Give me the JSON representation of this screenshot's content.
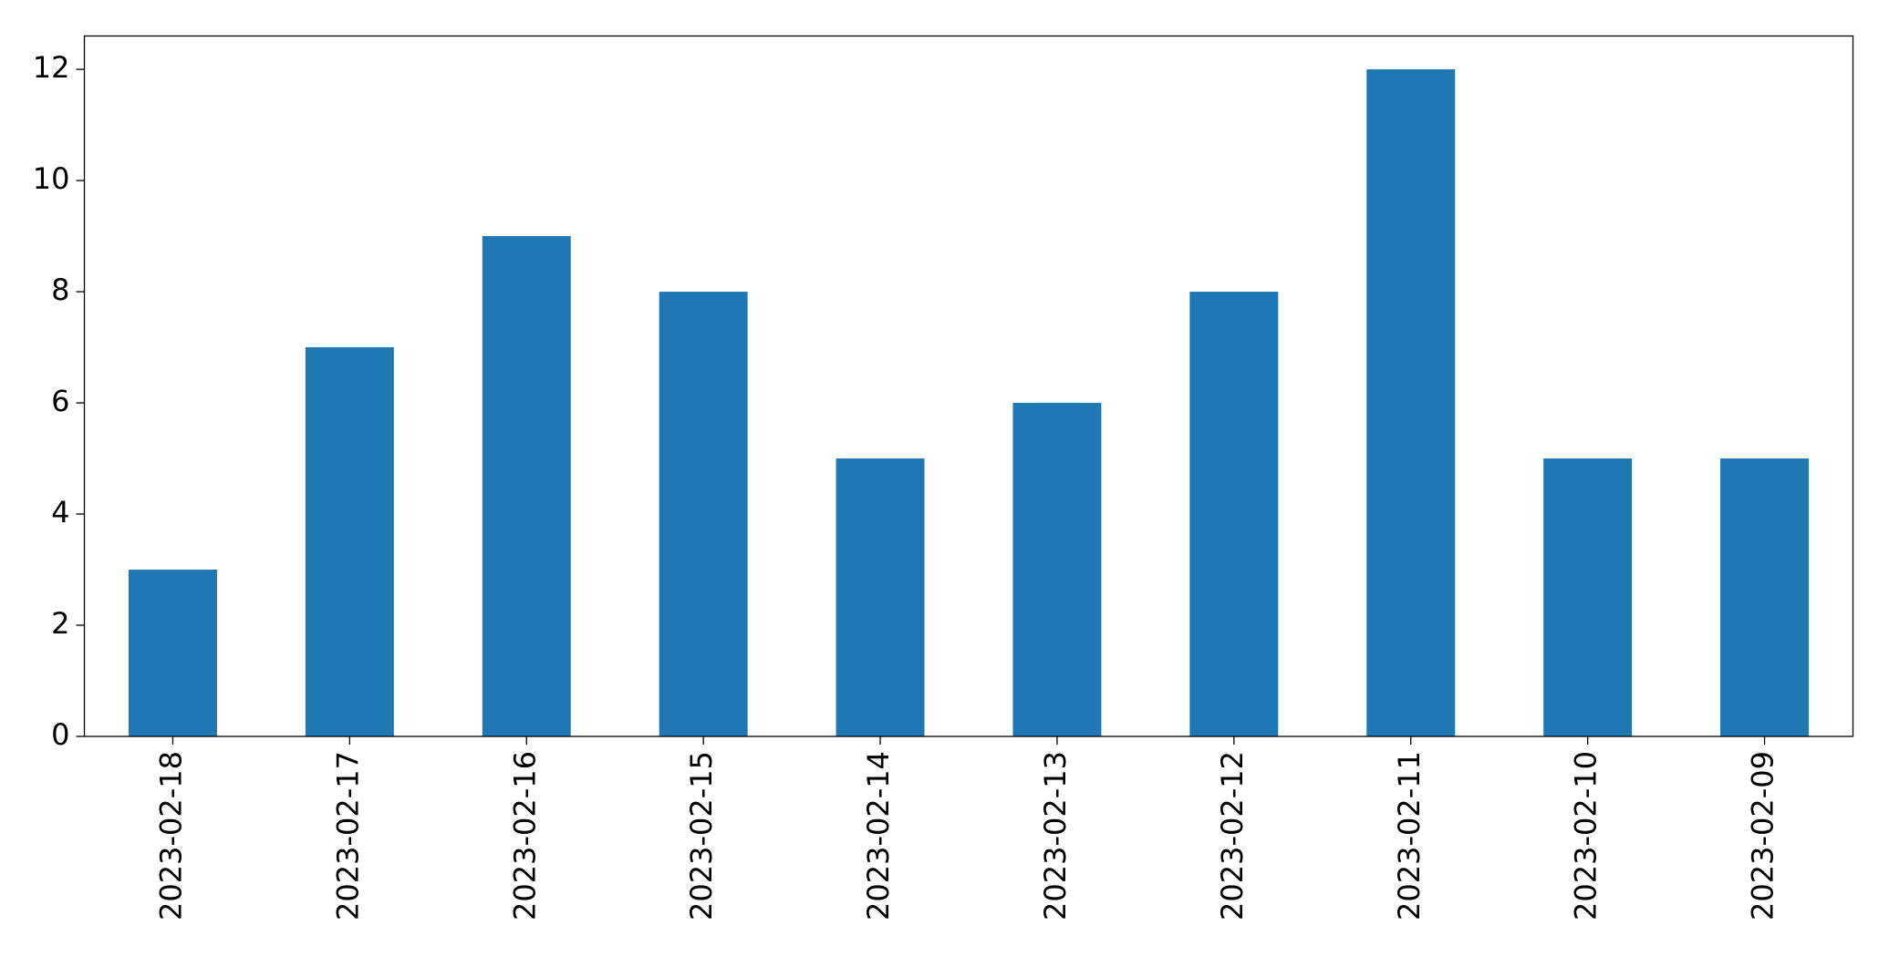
{
  "chart_data": {
    "type": "bar",
    "categories": [
      "2023-02-18",
      "2023-02-17",
      "2023-02-16",
      "2023-02-15",
      "2023-02-14",
      "2023-02-13",
      "2023-02-12",
      "2023-02-11",
      "2023-02-10",
      "2023-02-09"
    ],
    "values": [
      3,
      7,
      9,
      8,
      5,
      6,
      8,
      12,
      5,
      5
    ],
    "color": "#1f77b4",
    "ylim": [
      0,
      12.6
    ],
    "yticks": [
      0,
      2,
      4,
      6,
      8,
      10,
      12
    ],
    "grid": false
  }
}
